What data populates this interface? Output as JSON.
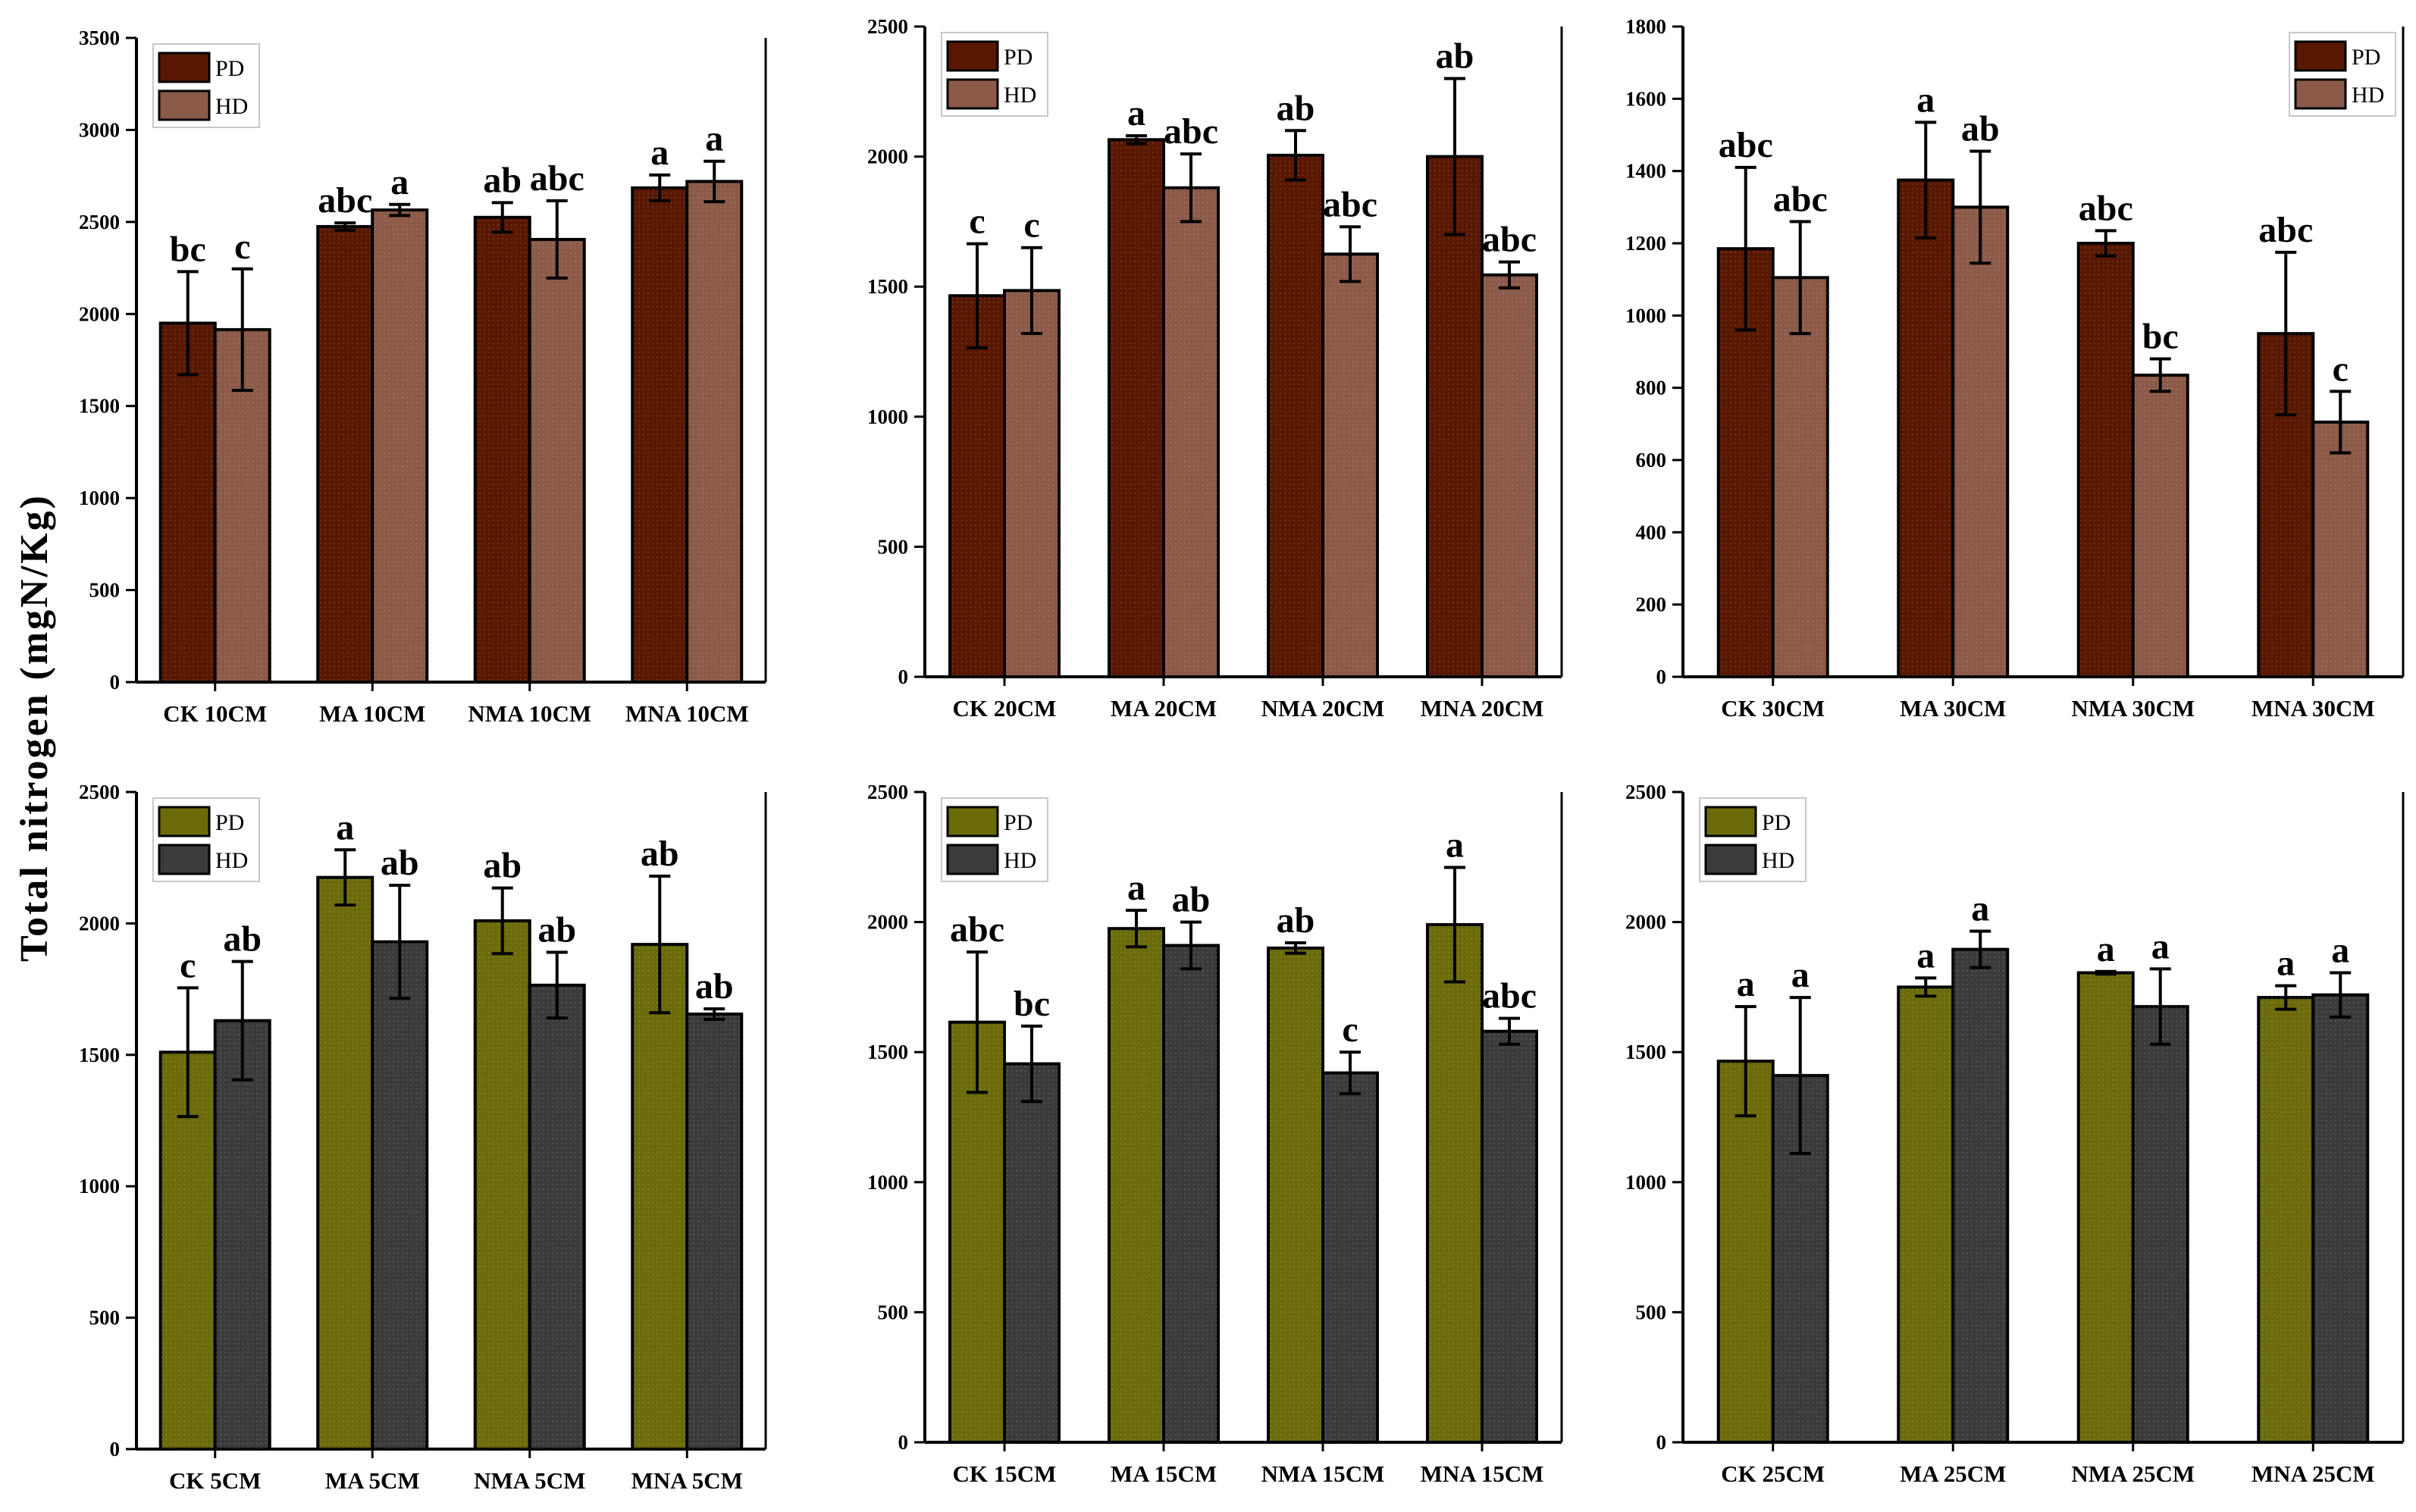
{
  "figure": {
    "ylabel": "Total nitrogen (mgN/Kg)"
  },
  "colors": {
    "top_PD": "#581800",
    "top_HD": "#8c5a48",
    "bottom_PD": "#6b6b0a",
    "bottom_HD": "#3b3b3b",
    "axis": "#000000",
    "background": "#ffffff"
  },
  "chart_data": [
    {
      "type": "bar",
      "title": "",
      "xlabel": "",
      "ylabel": "Total nitrogen (mgN/Kg)",
      "ylim": [
        0,
        3500
      ],
      "yticks": [
        0,
        500,
        1000,
        1500,
        2000,
        2500,
        3000,
        3500
      ],
      "legend_position": "top-left",
      "categories": [
        "CK 10CM",
        "MA 10CM",
        "NMA 10CM",
        "MNA 10CM"
      ],
      "series": [
        {
          "name": "PD",
          "values": [
            1950,
            2475,
            2525,
            2685
          ],
          "errors": [
            280,
            20,
            80,
            70
          ],
          "labels": [
            "bc",
            "abc",
            "ab",
            "a"
          ]
        },
        {
          "name": "HD",
          "values": [
            1915,
            2565,
            2405,
            2720
          ],
          "errors": [
            330,
            30,
            210,
            110
          ],
          "labels": [
            "c",
            "a",
            "abc",
            "a"
          ]
        }
      ]
    },
    {
      "type": "bar",
      "title": "",
      "xlabel": "",
      "ylabel": "",
      "ylim": [
        0,
        2500
      ],
      "yticks": [
        0,
        500,
        1000,
        1500,
        2000,
        2500
      ],
      "legend_position": "top-left",
      "categories": [
        "CK 20CM",
        "MA 20CM",
        "NMA 20CM",
        "MNA 20CM"
      ],
      "series": [
        {
          "name": "PD",
          "values": [
            1465,
            2065,
            2005,
            2000
          ],
          "errors": [
            200,
            15,
            95,
            300
          ],
          "labels": [
            "c",
            "a",
            "ab",
            "ab"
          ]
        },
        {
          "name": "HD",
          "values": [
            1485,
            1880,
            1625,
            1545
          ],
          "errors": [
            165,
            130,
            105,
            50
          ],
          "labels": [
            "c",
            "abc",
            "abc",
            "abc"
          ]
        }
      ]
    },
    {
      "type": "bar",
      "title": "",
      "xlabel": "",
      "ylabel": "",
      "ylim": [
        0,
        1800
      ],
      "yticks": [
        0,
        200,
        400,
        600,
        800,
        1000,
        1200,
        1400,
        1600,
        1800
      ],
      "legend_position": "top-right",
      "categories": [
        "CK 30CM",
        "MA 30CM",
        "NMA 30CM",
        "MNA 30CM"
      ],
      "series": [
        {
          "name": "PD",
          "values": [
            1185,
            1375,
            1200,
            950
          ],
          "errors": [
            225,
            160,
            35,
            225
          ],
          "labels": [
            "abc",
            "a",
            "abc",
            "abc"
          ]
        },
        {
          "name": "HD",
          "values": [
            1105,
            1300,
            835,
            705
          ],
          "errors": [
            155,
            155,
            45,
            85
          ],
          "labels": [
            "abc",
            "ab",
            "bc",
            "c"
          ]
        }
      ]
    },
    {
      "type": "bar",
      "title": "",
      "xlabel": "",
      "ylabel": "",
      "ylim": [
        0,
        2500
      ],
      "yticks": [
        0,
        500,
        1000,
        1500,
        2000,
        2500
      ],
      "legend_position": "top-left",
      "categories": [
        "CK 5CM",
        "MA 5CM",
        "NMA 5CM",
        "MNA 5CM"
      ],
      "series": [
        {
          "name": "PD",
          "values": [
            1510,
            2175,
            2010,
            1920
          ],
          "errors": [
            245,
            105,
            125,
            260
          ],
          "labels": [
            "c",
            "a",
            "ab",
            "ab"
          ]
        },
        {
          "name": "HD",
          "values": [
            1630,
            1930,
            1765,
            1655
          ],
          "errors": [
            225,
            215,
            125,
            20
          ],
          "labels": [
            "ab",
            "ab",
            "ab",
            "ab"
          ]
        }
      ]
    },
    {
      "type": "bar",
      "title": "",
      "xlabel": "",
      "ylabel": "",
      "ylim": [
        0,
        2500
      ],
      "yticks": [
        0,
        500,
        1000,
        1500,
        2000,
        2500
      ],
      "legend_position": "top-left",
      "categories": [
        "CK 15CM",
        "MA 15CM",
        "NMA 15CM",
        "MNA 15CM"
      ],
      "series": [
        {
          "name": "PD",
          "values": [
            1615,
            1975,
            1900,
            1990
          ],
          "errors": [
            270,
            70,
            20,
            220
          ],
          "labels": [
            "abc",
            "a",
            "ab",
            "a"
          ]
        },
        {
          "name": "HD",
          "values": [
            1455,
            1910,
            1420,
            1580
          ],
          "errors": [
            145,
            90,
            80,
            50
          ],
          "labels": [
            "bc",
            "ab",
            "c",
            "abc"
          ]
        }
      ]
    },
    {
      "type": "bar",
      "title": "",
      "xlabel": "",
      "ylabel": "",
      "ylim": [
        0,
        2500
      ],
      "yticks": [
        0,
        500,
        1000,
        1500,
        2000,
        2500
      ],
      "legend_position": "top-left",
      "categories": [
        "CK 25CM",
        "MA 25CM",
        "NMA 25CM",
        "MNA 25CM"
      ],
      "series": [
        {
          "name": "PD",
          "values": [
            1465,
            1750,
            1805,
            1710
          ],
          "errors": [
            210,
            35,
            5,
            45
          ],
          "labels": [
            "a",
            "a",
            "a",
            "a"
          ]
        },
        {
          "name": "HD",
          "values": [
            1410,
            1895,
            1675,
            1720
          ],
          "errors": [
            300,
            70,
            145,
            85
          ],
          "labels": [
            "a",
            "a",
            "a",
            "a"
          ]
        }
      ]
    }
  ]
}
